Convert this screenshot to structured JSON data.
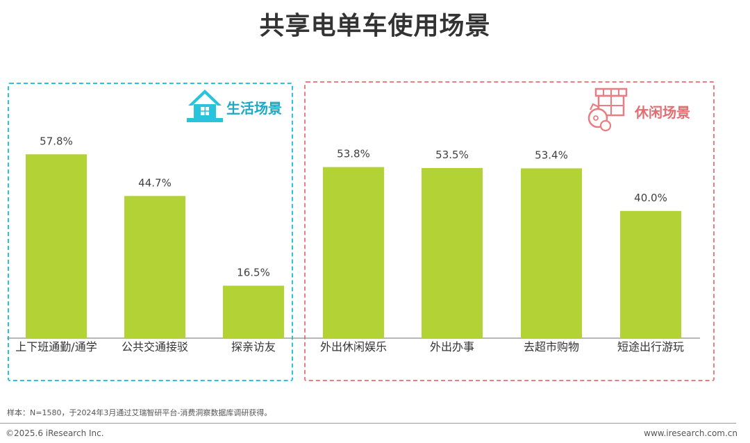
{
  "title": "共享电单车使用场景",
  "panels": {
    "life": {
      "label": "生活场景",
      "color": "#29c4dc"
    },
    "leisure": {
      "label": "休闲场景",
      "color": "#ea7d81"
    }
  },
  "chart_data": {
    "type": "bar",
    "title": "共享电单车使用场景",
    "categories": [
      "上下班通勤/通学",
      "公共交通接驳",
      "探亲访友",
      "外出休闲娱乐",
      "外出办事",
      "去超市购物",
      "短途出行游玩"
    ],
    "values": [
      57.8,
      44.7,
      16.5,
      53.8,
      53.5,
      53.4,
      40.0
    ],
    "value_labels": [
      "57.8%",
      "44.7%",
      "16.5%",
      "53.8%",
      "53.5%",
      "53.4%",
      "40.0%"
    ],
    "groups": [
      {
        "name": "生活场景",
        "categories": [
          "上下班通勤/通学",
          "公共交通接驳",
          "探亲访友"
        ]
      },
      {
        "name": "休闲场景",
        "categories": [
          "外出休闲娱乐",
          "外出办事",
          "去超市购物",
          "短途出行游玩"
        ]
      }
    ],
    "ylim": [
      0,
      60
    ],
    "bar_color": "#b2d235",
    "grid": false,
    "unit": "%"
  },
  "footnote": "样本：N=1580，于2024年3月通过艾瑞智研平台-消费洞察数据库调研获得。",
  "copyright": "©2025.6 iResearch Inc.",
  "website": "www.iresearch.com.cn"
}
